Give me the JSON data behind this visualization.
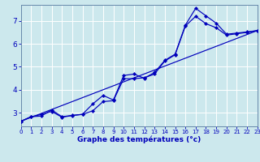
{
  "xlabel": "Graphe des températures (°c)",
  "bg_color": "#cce8ed",
  "line_color": "#0000bb",
  "grid_color": "#ffffff",
  "spine_color": "#6688aa",
  "xmin": 0,
  "xmax": 23,
  "ymin": 2.4,
  "ymax": 7.7,
  "yticks": [
    3,
    4,
    5,
    6,
    7
  ],
  "xticks": [
    0,
    1,
    2,
    3,
    4,
    5,
    6,
    7,
    8,
    9,
    10,
    11,
    12,
    13,
    14,
    15,
    16,
    17,
    18,
    19,
    20,
    21,
    22,
    23
  ],
  "line1_x": [
    0,
    1,
    2,
    3,
    4,
    5,
    6,
    7,
    8,
    9,
    10,
    11,
    12,
    13,
    14,
    15,
    16,
    17,
    18,
    19,
    20,
    21,
    22,
    23
  ],
  "line1_y": [
    2.62,
    2.82,
    2.92,
    3.05,
    2.8,
    2.87,
    2.93,
    3.38,
    3.75,
    3.55,
    4.62,
    4.68,
    4.5,
    4.75,
    5.28,
    5.55,
    6.82,
    7.55,
    7.22,
    6.9,
    6.42,
    6.47,
    6.52,
    6.58
  ],
  "line2_x": [
    0,
    1,
    2,
    3,
    4,
    5,
    6,
    7,
    8,
    9,
    10,
    11,
    12,
    13,
    14,
    15,
    16,
    17,
    18,
    19,
    20,
    21,
    22,
    23
  ],
  "line2_y": [
    2.62,
    2.82,
    2.85,
    3.12,
    2.82,
    2.88,
    2.92,
    3.08,
    3.48,
    3.52,
    4.48,
    4.48,
    4.52,
    4.68,
    5.25,
    5.52,
    6.78,
    7.2,
    6.88,
    6.7,
    6.38,
    6.44,
    6.5,
    6.58
  ],
  "line3_x": [
    0,
    23
  ],
  "line3_y": [
    2.62,
    6.58
  ],
  "marker_size": 2.2,
  "linewidth": 0.85,
  "tick_fontsize": 5.0,
  "xlabel_fontsize": 6.5
}
